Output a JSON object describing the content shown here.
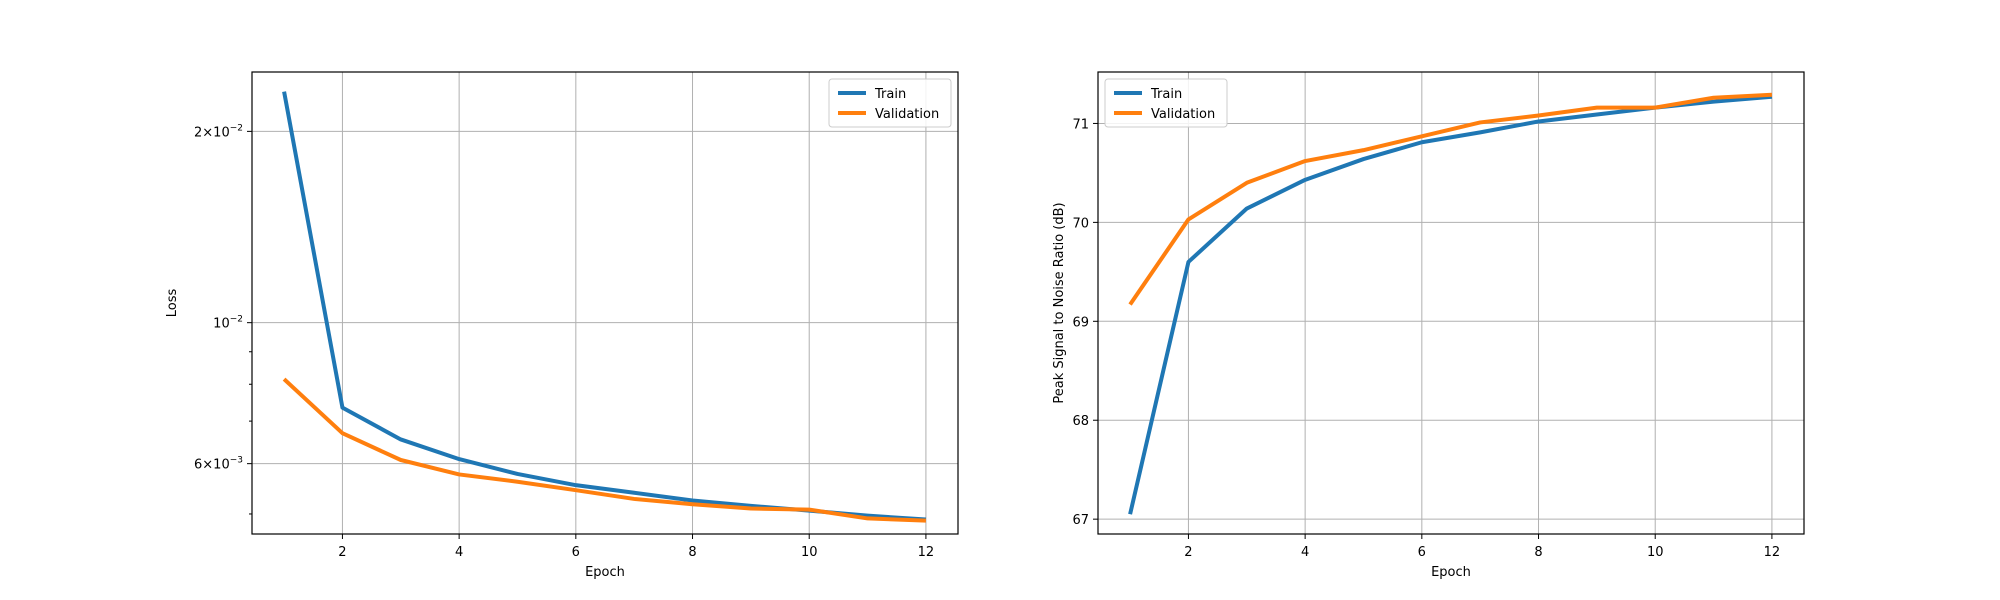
{
  "colors": {
    "train": "#1f77b4",
    "validation": "#ff7f0e",
    "grid": "#b0b0b0",
    "axes": "#000000"
  },
  "chart_data": [
    {
      "type": "line",
      "title": "",
      "xlabel": "Epoch",
      "ylabel": "Loss",
      "yscale": "log",
      "grid": true,
      "legend_position": "top-right",
      "xlim": [
        0.45,
        12.55
      ],
      "ylim": [
        0.00465,
        0.0248
      ],
      "xticks": [
        2,
        4,
        6,
        8,
        10,
        12
      ],
      "xtick_labels": [
        "2",
        "4",
        "6",
        "8",
        "10",
        "12"
      ],
      "yticks_major": [
        0.006,
        0.01,
        0.02
      ],
      "ytick_labels": [
        {
          "mantissa": "6",
          "times": "×",
          "base": "10",
          "exp": "−3"
        },
        {
          "mantissa": "",
          "times": "",
          "base": "10",
          "exp": "−2"
        },
        {
          "mantissa": "2",
          "times": "×",
          "base": "10",
          "exp": "−2"
        }
      ],
      "yticks_minor": [
        0.005,
        0.007,
        0.008,
        0.009
      ],
      "x": [
        1,
        2,
        3,
        4,
        5,
        6,
        7,
        8,
        9,
        10,
        11,
        12
      ],
      "series": [
        {
          "name": "Train",
          "color": "#1f77b4",
          "values": [
            0.0231,
            0.00735,
            0.00655,
            0.0061,
            0.00578,
            0.00555,
            0.0054,
            0.00525,
            0.00515,
            0.00506,
            0.00497,
            0.0049
          ]
        },
        {
          "name": "Validation",
          "color": "#ff7f0e",
          "values": [
            0.00815,
            0.0067,
            0.00608,
            0.00577,
            0.00562,
            0.00545,
            0.00528,
            0.00518,
            0.0051,
            0.00508,
            0.00492,
            0.00488
          ]
        }
      ]
    },
    {
      "type": "line",
      "title": "",
      "xlabel": "Epoch",
      "ylabel": "Peak Signal to Noise Ratio (dB)",
      "yscale": "linear",
      "grid": true,
      "legend_position": "top-left",
      "xlim": [
        0.45,
        12.55
      ],
      "ylim": [
        66.85,
        71.52
      ],
      "xticks": [
        2,
        4,
        6,
        8,
        10,
        12
      ],
      "xtick_labels": [
        "2",
        "4",
        "6",
        "8",
        "10",
        "12"
      ],
      "yticks": [
        67,
        68,
        69,
        70,
        71
      ],
      "ytick_labels": [
        "67",
        "68",
        "69",
        "70",
        "71"
      ],
      "x": [
        1,
        2,
        3,
        4,
        5,
        6,
        7,
        8,
        9,
        10,
        11,
        12
      ],
      "series": [
        {
          "name": "Train",
          "color": "#1f77b4",
          "values": [
            67.05,
            69.6,
            70.14,
            70.43,
            70.64,
            70.81,
            70.91,
            71.02,
            71.09,
            71.16,
            71.22,
            71.27
          ]
        },
        {
          "name": "Validation",
          "color": "#ff7f0e",
          "values": [
            69.17,
            70.03,
            70.4,
            70.62,
            70.73,
            70.87,
            71.01,
            71.08,
            71.16,
            71.16,
            71.26,
            71.29
          ]
        }
      ]
    }
  ]
}
